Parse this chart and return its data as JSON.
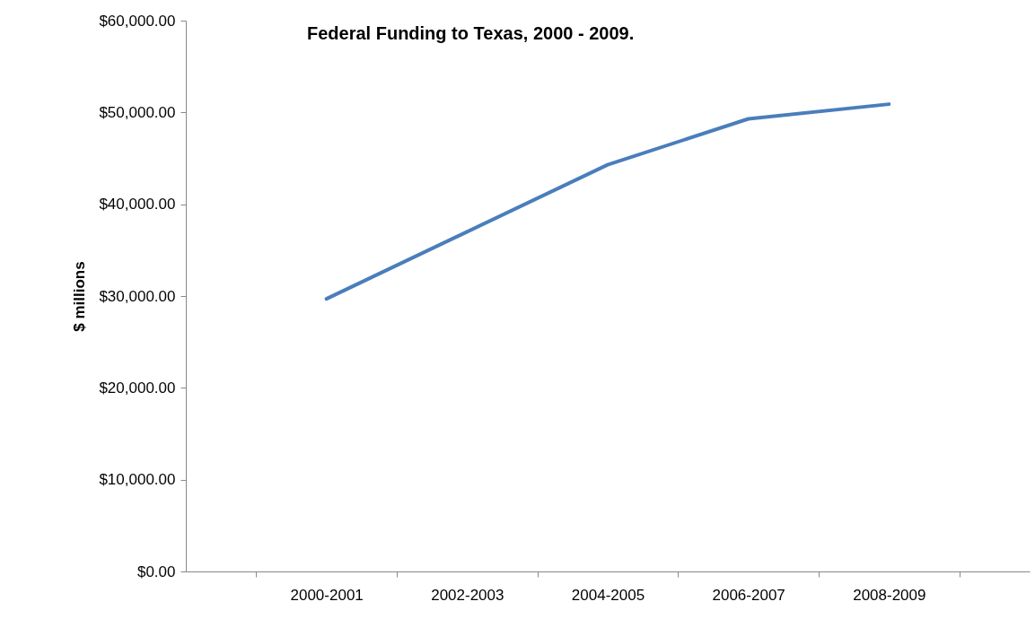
{
  "chart_data": {
    "type": "line",
    "title": "Federal Funding to Texas, 2000 - 2009.",
    "ylabel": "$ millions",
    "categories": [
      "2000-2001",
      "2002-2003",
      "2004-2005",
      "2006-2007",
      "2008-2009"
    ],
    "series": [
      {
        "color": "#4a7ebb",
        "values": [
          29700,
          37000,
          44300,
          49300,
          50900
        ]
      }
    ],
    "ylim": [
      0,
      60000
    ],
    "yticks": [
      {
        "value": 0,
        "label": "$0.00"
      },
      {
        "value": 10000,
        "label": "$10,000.00"
      },
      {
        "value": 20000,
        "label": "$20,000.00"
      },
      {
        "value": 30000,
        "label": "$30,000.00"
      },
      {
        "value": 40000,
        "label": "$40,000.00"
      },
      {
        "value": 50000,
        "label": "$50,000.00"
      },
      {
        "value": 60000,
        "label": "$60,000.00"
      }
    ],
    "grid": false,
    "legend": false,
    "marker": "none",
    "line_style": "solid"
  }
}
